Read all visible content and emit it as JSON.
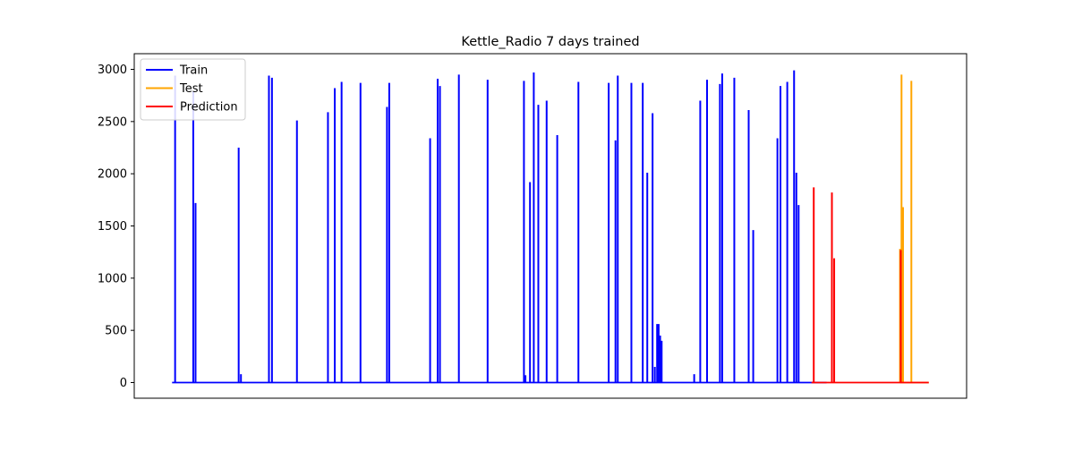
{
  "chart_data": {
    "type": "line",
    "title": "Kettle_Radio 7 days trained",
    "xlabel": "",
    "ylabel": "",
    "x_range": [
      -0.05,
      1.05
    ],
    "ylim": [
      -150,
      3150
    ],
    "yticks": [
      0,
      500,
      1000,
      1500,
      2000,
      2500,
      3000
    ],
    "grid": false,
    "legend_position": "top-left",
    "series": [
      {
        "name": "Train",
        "color": "#0000ff",
        "x_range": [
          0.0,
          0.865
        ],
        "spikes": [
          [
            0.004,
            2940
          ],
          [
            0.028,
            2790
          ],
          [
            0.031,
            1720
          ],
          [
            0.088,
            2250
          ],
          [
            0.091,
            80
          ],
          [
            0.128,
            2940
          ],
          [
            0.132,
            2920
          ],
          [
            0.165,
            2510
          ],
          [
            0.206,
            2590
          ],
          [
            0.215,
            2820
          ],
          [
            0.224,
            2880
          ],
          [
            0.249,
            2870
          ],
          [
            0.284,
            2640
          ],
          [
            0.287,
            2870
          ],
          [
            0.341,
            2340
          ],
          [
            0.351,
            2910
          ],
          [
            0.354,
            2840
          ],
          [
            0.379,
            2950
          ],
          [
            0.417,
            2900
          ],
          [
            0.465,
            2890
          ],
          [
            0.467,
            70
          ],
          [
            0.473,
            1920
          ],
          [
            0.478,
            2970
          ],
          [
            0.484,
            2660
          ],
          [
            0.495,
            2700
          ],
          [
            0.509,
            2370
          ],
          [
            0.537,
            2880
          ],
          [
            0.577,
            2870
          ],
          [
            0.586,
            2320
          ],
          [
            0.589,
            2940
          ],
          [
            0.607,
            2870
          ],
          [
            0.622,
            2870
          ],
          [
            0.628,
            2010
          ],
          [
            0.635,
            2580
          ],
          [
            0.638,
            150
          ],
          [
            0.641,
            560
          ],
          [
            0.643,
            560
          ],
          [
            0.645,
            450
          ],
          [
            0.647,
            400
          ],
          [
            0.69,
            80
          ],
          [
            0.698,
            2700
          ],
          [
            0.707,
            2900
          ],
          [
            0.724,
            2860
          ],
          [
            0.727,
            2960
          ],
          [
            0.743,
            2920
          ],
          [
            0.762,
            2610
          ],
          [
            0.768,
            1460
          ],
          [
            0.8,
            2340
          ],
          [
            0.804,
            2840
          ],
          [
            0.813,
            2880
          ],
          [
            0.822,
            2990
          ],
          [
            0.825,
            2010
          ],
          [
            0.828,
            1700
          ]
        ]
      },
      {
        "name": "Test",
        "color": "#ffa500",
        "x_range": [
          0.962,
          1.0
        ],
        "spikes": [
          [
            0.962,
            1280
          ],
          [
            0.964,
            2950
          ],
          [
            0.966,
            1680
          ],
          [
            0.977,
            2890
          ]
        ]
      },
      {
        "name": "Prediction",
        "color": "#ff0000",
        "x_range": [
          0.845,
          1.0
        ],
        "spikes": [
          [
            0.848,
            1870
          ],
          [
            0.872,
            1820
          ],
          [
            0.875,
            1190
          ],
          [
            0.963,
            1270
          ]
        ]
      }
    ]
  }
}
